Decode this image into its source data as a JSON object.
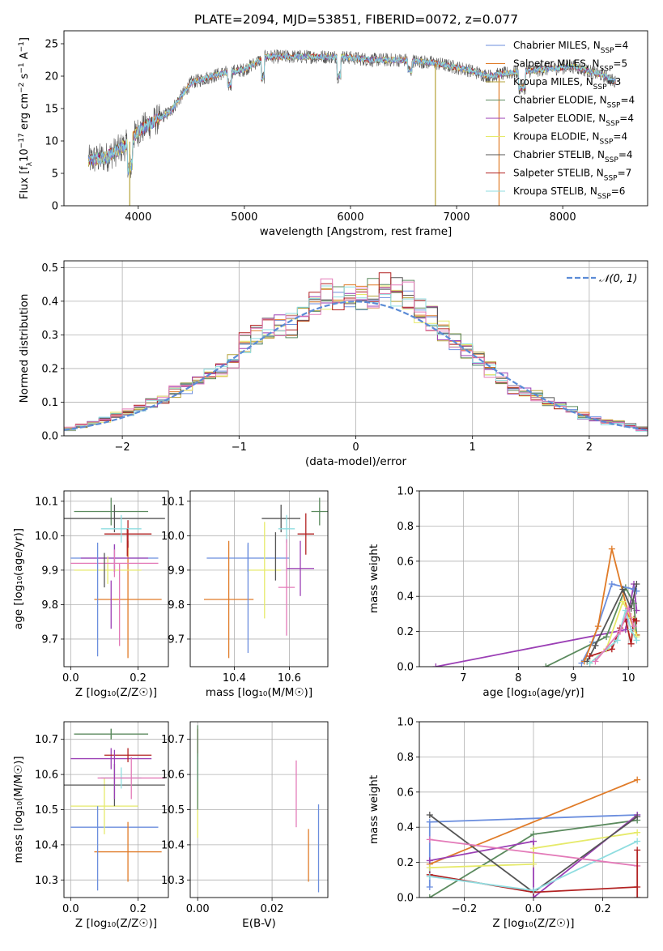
{
  "figure": {
    "title": "PLATE=2094, MJD=53851, FIBERID=0072, z=0.077"
  },
  "colors": {
    "Chabrier MILES": "#6b8ede",
    "Salpeter MILES": "#e07b28",
    "Kroupa MILES": "#b5a33a",
    "Chabrier ELODIE": "#5b8a5e",
    "Salpeter ELODIE": "#9b3fb5",
    "Kroupa ELODIE": "#e6ea6a",
    "Chabrier STELIB": "#555555",
    "Salpeter STELIB": "#b22222",
    "Kroupa STELIB": "#8fdde0",
    "pink": "#e37ab8",
    "gaussian": "#5b8bd6"
  },
  "chart_data": [
    {
      "id": "spectrum",
      "type": "line",
      "xlabel": "wavelength [Angstrom, rest frame]",
      "ylabel": "Flux [f_λ10^-17 erg cm^-2 s^-1 A^-1]",
      "xlim": [
        3300,
        8800
      ],
      "ylim": [
        0,
        27
      ],
      "xticks": [
        4000,
        5000,
        6000,
        7000,
        8000
      ],
      "yticks": [
        0,
        5,
        10,
        15,
        20,
        25
      ],
      "grid": false,
      "legend_position": "top-right",
      "legend": [
        {
          "name": "Chabrier MILES",
          "nssp": "4"
        },
        {
          "name": "Salpeter MILES",
          "nssp": "5"
        },
        {
          "name": "Kroupa MILES",
          "nssp": "3"
        },
        {
          "name": "Chabrier ELODIE",
          "nssp": "4"
        },
        {
          "name": "Salpeter ELODIE",
          "nssp": "4"
        },
        {
          "name": "Kroupa ELODIE",
          "nssp": "4"
        },
        {
          "name": "Chabrier STELIB",
          "nssp": "4"
        },
        {
          "name": "Salpeter STELIB",
          "nssp": "7"
        },
        {
          "name": "Kroupa STELIB",
          "nssp": "6"
        }
      ],
      "spectrum_envelope": {
        "x": [
          3530,
          3700,
          3900,
          4000,
          4300,
          4500,
          4800,
          5000,
          5200,
          5500,
          5900,
          6200,
          6500,
          6800,
          7100,
          7300,
          7500,
          7800,
          8100,
          8400,
          8500
        ],
        "y": [
          7.0,
          7.5,
          9.5,
          11.5,
          14.5,
          19.0,
          20.5,
          21.0,
          23.0,
          23.0,
          23.0,
          22.5,
          22.5,
          22.0,
          21.0,
          20.0,
          20.5,
          21.0,
          21.5,
          20.0,
          19.0
        ]
      },
      "drop_lines": [
        {
          "x": 3920,
          "series": "Kroupa MILES"
        },
        {
          "x": 6800,
          "series": "Kroupa MILES"
        },
        {
          "x": 7400,
          "series": "Salpeter MILES"
        }
      ]
    },
    {
      "id": "residuals",
      "type": "bar",
      "xlabel": "(data-model)/error",
      "ylabel": "Normed distribution",
      "xlim": [
        -2.5,
        2.5
      ],
      "ylim": [
        0,
        0.52
      ],
      "xticks": [
        -2,
        -1,
        0,
        1,
        2
      ],
      "yticks": [
        0.0,
        0.1,
        0.2,
        0.3,
        0.4,
        0.5
      ],
      "grid": true,
      "legend_position": "top-right",
      "gaussian_label": "𝒩(0, 1)",
      "bin_width": 0.1,
      "centers": [
        -2.45,
        -2.35,
        -2.25,
        -2.15,
        -2.05,
        -1.95,
        -1.85,
        -1.75,
        -1.65,
        -1.55,
        -1.45,
        -1.35,
        -1.25,
        -1.15,
        -1.05,
        -0.95,
        -0.85,
        -0.75,
        -0.65,
        -0.55,
        -0.45,
        -0.35,
        -0.25,
        -0.15,
        -0.05,
        0.05,
        0.15,
        0.25,
        0.35,
        0.45,
        0.55,
        0.65,
        0.75,
        0.85,
        0.95,
        1.05,
        1.15,
        1.25,
        1.35,
        1.45,
        1.55,
        1.65,
        1.75,
        1.85,
        1.95,
        2.05,
        2.15,
        2.25,
        2.35,
        2.45
      ],
      "base_values": [
        0.02,
        0.03,
        0.04,
        0.05,
        0.06,
        0.07,
        0.08,
        0.1,
        0.11,
        0.13,
        0.14,
        0.16,
        0.18,
        0.19,
        0.22,
        0.28,
        0.3,
        0.32,
        0.33,
        0.33,
        0.36,
        0.39,
        0.42,
        0.41,
        0.4,
        0.4,
        0.42,
        0.44,
        0.43,
        0.42,
        0.37,
        0.35,
        0.31,
        0.28,
        0.25,
        0.23,
        0.2,
        0.17,
        0.14,
        0.13,
        0.12,
        0.1,
        0.09,
        0.08,
        0.06,
        0.05,
        0.04,
        0.04,
        0.03,
        0.02
      ]
    },
    {
      "id": "age_vs_Z",
      "type": "scatter",
      "xlabel": "Z [log₁₀(Z/Z☉)]",
      "ylabel": "age  [log₁₀(age/yr)]",
      "xlim": [
        -0.02,
        0.29
      ],
      "ylim": [
        9.62,
        10.13
      ],
      "xticks": [
        0.0,
        0.2
      ],
      "yticks": [
        9.7,
        9.8,
        9.9,
        10.0,
        10.1
      ],
      "grid": true,
      "points": [
        {
          "series": "Chabrier MILES",
          "x": 0.13,
          "xerr": 0.13,
          "y": 9.935,
          "yerr": 0.04
        },
        {
          "series": "Salpeter MILES",
          "x": 0.17,
          "xerr": 0.1,
          "y": 9.815,
          "yerr": 0.17
        },
        {
          "series": "Chabrier ELODIE",
          "x": 0.12,
          "xerr": 0.11,
          "y": 10.07,
          "yerr": 0.04
        },
        {
          "series": "Salpeter ELODIE",
          "x": 0.13,
          "xerr": 0.1,
          "y": 9.935,
          "yerr": 0.04
        },
        {
          "series": "Kroupa ELODIE",
          "x": 0.11,
          "xerr": 0.1,
          "y": 9.9,
          "yerr": 0.04
        },
        {
          "series": "Chabrier STELIB",
          "x": 0.13,
          "xerr": 0.15,
          "y": 10.05,
          "yerr": 0.04
        },
        {
          "series": "Salpeter STELIB",
          "x": 0.17,
          "xerr": 0.07,
          "y": 10.005,
          "yerr": 0.04
        },
        {
          "series": "Kroupa STELIB",
          "x": 0.15,
          "xerr": 0.06,
          "y": 10.02,
          "yerr": 0.04
        },
        {
          "series": "pink",
          "x": 0.13,
          "xerr": 0.13,
          "y": 9.92,
          "yerr": 0.04
        },
        {
          "series": "Chabrier MILES",
          "x": 0.08,
          "xerr": 0.0,
          "y": 9.815,
          "yerr": 0.165
        },
        {
          "series": "Salpeter ELODIE",
          "x": 0.12,
          "xerr": 0.0,
          "y": 9.8,
          "yerr": 0.07
        },
        {
          "series": "Chabrier STELIB",
          "x": 0.1,
          "xerr": 0.0,
          "y": 9.9,
          "yerr": 0.05
        },
        {
          "series": "Salpeter STELIB",
          "x": 0.168,
          "xerr": 0.0,
          "y": 9.98,
          "yerr": 0.04
        },
        {
          "series": "pink",
          "x": 0.145,
          "xerr": 0.0,
          "y": 9.8,
          "yerr": 0.12
        }
      ]
    },
    {
      "id": "age_vs_mass",
      "type": "scatter",
      "xlabel": "mass [log₁₀(M/M☉)]",
      "ylabel": "",
      "xlim": [
        10.24,
        10.74
      ],
      "ylim": [
        9.62,
        10.13
      ],
      "xticks": [
        10.4,
        10.6
      ],
      "yticks": [
        9.7,
        9.8,
        9.9,
        10.0,
        10.1
      ],
      "grid": true,
      "points": [
        {
          "series": "Chabrier MILES",
          "x": 10.45,
          "xerr": 0.15,
          "y": 9.935,
          "yerr": 0.04
        },
        {
          "series": "Salpeter MILES",
          "x": 10.38,
          "xerr": 0.09,
          "y": 9.815,
          "yerr": 0.17
        },
        {
          "series": "Chabrier ELODIE",
          "x": 10.71,
          "xerr": 0.03,
          "y": 10.07,
          "yerr": 0.04
        },
        {
          "series": "Salpeter ELODIE",
          "x": 10.64,
          "xerr": 0.05,
          "y": 9.905,
          "yerr": 0.08
        },
        {
          "series": "Kroupa ELODIE",
          "x": 10.51,
          "xerr": 0.06,
          "y": 9.9,
          "yerr": 0.14
        },
        {
          "series": "Chabrier STELIB",
          "x": 10.57,
          "xerr": 0.07,
          "y": 10.05,
          "yerr": 0.04
        },
        {
          "series": "Salpeter STELIB",
          "x": 10.66,
          "xerr": 0.03,
          "y": 10.005,
          "yerr": 0.06
        },
        {
          "series": "Kroupa STELIB",
          "x": 10.59,
          "xerr": 0.03,
          "y": 10.02,
          "yerr": 0.04
        },
        {
          "series": "pink",
          "x": 10.59,
          "xerr": 0.03,
          "y": 9.85,
          "yerr": 0.14
        },
        {
          "series": "Chabrier MILES",
          "x": 10.45,
          "xerr": 0.0,
          "y": 9.82,
          "yerr": 0.16
        },
        {
          "series": "Chabrier STELIB",
          "x": 10.55,
          "xerr": 0.0,
          "y": 9.94,
          "yerr": 0.07
        }
      ]
    },
    {
      "id": "weight_vs_age",
      "type": "line",
      "xlabel": "age  [log₁₀(age/yr)]",
      "ylabel": "mass weight",
      "xlim": [
        6.2,
        10.35
      ],
      "ylim": [
        0,
        1
      ],
      "xticks": [
        7,
        8,
        9,
        10
      ],
      "yticks": [
        0.0,
        0.2,
        0.4,
        0.6,
        0.8,
        1.0
      ],
      "grid": true,
      "series": [
        {
          "name": "Salpeter ELODIE",
          "x": [
            6.5,
            9.95,
            10.1,
            10.15
          ],
          "y": [
            0.0,
            0.21,
            0.47,
            0.32
          ]
        },
        {
          "name": "Chabrier ELODIE",
          "x": [
            8.5,
            9.6,
            9.95,
            10.1,
            10.15
          ],
          "y": [
            0.0,
            0.17,
            0.45,
            0.36,
            0.18
          ]
        },
        {
          "name": "Chabrier MILES",
          "x": [
            9.15,
            9.35,
            9.7,
            10.1,
            10.15
          ],
          "y": [
            0.02,
            0.14,
            0.47,
            0.44,
            0.43
          ]
        },
        {
          "name": "Salpeter MILES",
          "x": [
            9.2,
            9.45,
            9.7,
            10.0,
            10.15
          ],
          "y": [
            0.03,
            0.23,
            0.67,
            0.3,
            0.18
          ]
        },
        {
          "name": "Chabrier STELIB",
          "x": [
            9.25,
            9.4,
            9.9,
            10.05,
            10.15
          ],
          "y": [
            0.03,
            0.12,
            0.44,
            0.33,
            0.47
          ]
        },
        {
          "name": "Salpeter STELIB",
          "x": [
            9.3,
            9.7,
            9.85,
            9.95,
            10.05,
            10.1,
            10.15
          ],
          "y": [
            0.06,
            0.1,
            0.22,
            0.27,
            0.13,
            0.27,
            0.26
          ]
        },
        {
          "name": "Kroupa ELODIE",
          "x": [
            9.3,
            9.6,
            9.9,
            10.05,
            10.15
          ],
          "y": [
            0.02,
            0.1,
            0.37,
            0.28,
            0.17
          ]
        },
        {
          "name": "Kroupa STELIB",
          "x": [
            9.3,
            9.8,
            9.95,
            10.05,
            10.15
          ],
          "y": [
            0.02,
            0.15,
            0.32,
            0.21,
            0.15
          ]
        },
        {
          "name": "pink",
          "x": [
            9.4,
            9.85,
            10.0,
            10.1
          ],
          "y": [
            0.03,
            0.2,
            0.33,
            0.23
          ]
        }
      ]
    },
    {
      "id": "mass_vs_Z",
      "type": "scatter",
      "xlabel": "Z [log₁₀(Z/Z☉)]",
      "ylabel": "mass [log₁₀(M/M☉)]",
      "xlim": [
        -0.02,
        0.29
      ],
      "ylim": [
        10.25,
        10.75
      ],
      "xticks": [
        0.0,
        0.2
      ],
      "yticks": [
        10.3,
        10.4,
        10.5,
        10.6,
        10.7
      ],
      "grid": true,
      "points": [
        {
          "series": "Chabrier MILES",
          "x": 0.13,
          "xerr": 0.13,
          "y": 10.45,
          "yerr": 0.0
        },
        {
          "series": "Salpeter MILES",
          "x": 0.17,
          "xerr": 0.1,
          "y": 10.38,
          "yerr": 0.085
        },
        {
          "series": "Chabrier ELODIE",
          "x": 0.12,
          "xerr": 0.11,
          "y": 10.715,
          "yerr": 0.015
        },
        {
          "series": "Salpeter ELODIE",
          "x": 0.12,
          "xerr": 0.12,
          "y": 10.645,
          "yerr": 0.03
        },
        {
          "series": "Kroupa ELODIE",
          "x": 0.1,
          "xerr": 0.1,
          "y": 10.51,
          "yerr": 0.08
        },
        {
          "series": "Chabrier STELIB",
          "x": 0.13,
          "xerr": 0.15,
          "y": 10.57,
          "yerr": 0.06
        },
        {
          "series": "Salpeter STELIB",
          "x": 0.17,
          "xerr": 0.07,
          "y": 10.655,
          "yerr": 0.02
        },
        {
          "series": "Kroupa STELIB",
          "x": 0.15,
          "xerr": 0.06,
          "y": 10.59,
          "yerr": 0.03
        },
        {
          "series": "pink",
          "x": 0.18,
          "xerr": 0.1,
          "y": 10.59,
          "yerr": 0.06
        },
        {
          "series": "Chabrier MILES",
          "x": 0.08,
          "xerr": 0.0,
          "y": 10.39,
          "yerr": 0.12
        },
        {
          "series": "Chabrier ELODIE",
          "x": 0.12,
          "xerr": 0.0,
          "y": 10.715,
          "yerr": 0.015
        },
        {
          "series": "Salpeter ELODIE",
          "x": 0.13,
          "xerr": 0.0,
          "y": 10.6,
          "yerr": 0.07
        }
      ]
    },
    {
      "id": "mass_vs_ebv",
      "type": "scatter",
      "xlabel": "E(B-V)",
      "ylabel": "",
      "xlim": [
        -0.002,
        0.035
      ],
      "ylim": [
        10.25,
        10.75
      ],
      "xticks": [
        0.0,
        0.02
      ],
      "yticks": [
        10.3,
        10.4,
        10.5,
        10.6,
        10.7
      ],
      "grid": true,
      "points": [
        {
          "series": "Chabrier MILES",
          "x": 0.0,
          "xerr": 0.0,
          "y": 10.66,
          "yerr": 0.05
        },
        {
          "series": "Salpeter STELIB",
          "x": 0.0,
          "xerr": 0.0,
          "y": 10.69,
          "yerr": 0.04
        },
        {
          "series": "Kroupa STELIB",
          "x": 0.0,
          "xerr": 0.0,
          "y": 10.6,
          "yerr": 0.06
        },
        {
          "series": "Kroupa ELODIE",
          "x": 0.0,
          "xerr": 0.0,
          "y": 10.5,
          "yerr": 0.08
        },
        {
          "series": "Chabrier ELODIE",
          "x": 0.0,
          "xerr": 0.0,
          "y": 10.62,
          "yerr": 0.12
        },
        {
          "series": "pink",
          "x": 0.0265,
          "xerr": 0.0,
          "y": 10.545,
          "yerr": 0.095
        },
        {
          "series": "Salpeter MILES",
          "x": 0.0298,
          "xerr": 0.0,
          "y": 10.37,
          "yerr": 0.075
        },
        {
          "series": "Chabrier MILES",
          "x": 0.0325,
          "xerr": 0.0,
          "y": 10.39,
          "yerr": 0.125
        }
      ]
    },
    {
      "id": "weight_vs_Z",
      "type": "line",
      "xlabel": "Z [log₁₀(Z/Z☉)]",
      "ylabel": "mass weight",
      "xlim": [
        -0.33,
        0.33
      ],
      "ylim": [
        0,
        1
      ],
      "xticks": [
        -0.2,
        0.0,
        0.2
      ],
      "yticks": [
        0.0,
        0.2,
        0.4,
        0.6,
        0.8,
        1.0
      ],
      "grid": true,
      "series": [
        {
          "name": "Chabrier MILES",
          "x": [
            -0.3,
            -0.3,
            0.3
          ],
          "y": [
            0.06,
            0.43,
            0.47
          ]
        },
        {
          "name": "Salpeter MILES",
          "x": [
            -0.3,
            0.3
          ],
          "y": [
            0.19,
            0.67
          ]
        },
        {
          "name": "Chabrier ELODIE",
          "x": [
            -0.3,
            0.0,
            0.3
          ],
          "y": [
            0.0,
            0.36,
            0.44
          ]
        },
        {
          "name": "Salpeter ELODIE",
          "x": [
            -0.3,
            0.0,
            0.0,
            0.3
          ],
          "y": [
            0.21,
            0.32,
            0.0,
            0.47
          ]
        },
        {
          "name": "Kroupa ELODIE",
          "x": [
            -0.3,
            0.0,
            0.0,
            0.3
          ],
          "y": [
            0.17,
            0.19,
            0.28,
            0.37
          ]
        },
        {
          "name": "Chabrier STELIB",
          "x": [
            -0.3,
            0.0,
            0.3
          ],
          "y": [
            0.47,
            0.03,
            0.46
          ]
        },
        {
          "name": "Salpeter STELIB",
          "x": [
            -0.3,
            0.0,
            0.3
          ],
          "y": [
            0.13,
            0.03,
            0.06
          ]
        },
        {
          "name": "Kroupa STELIB",
          "x": [
            -0.3,
            0.0,
            0.3
          ],
          "y": [
            0.12,
            0.04,
            0.32
          ]
        },
        {
          "name": "pink",
          "x": [
            -0.3,
            0.3
          ],
          "y": [
            0.33,
            0.18
          ]
        },
        {
          "name": "Salpeter STELIB",
          "x": [
            0.3,
            0.3
          ],
          "y": [
            0.0,
            0.27
          ]
        }
      ]
    }
  ]
}
